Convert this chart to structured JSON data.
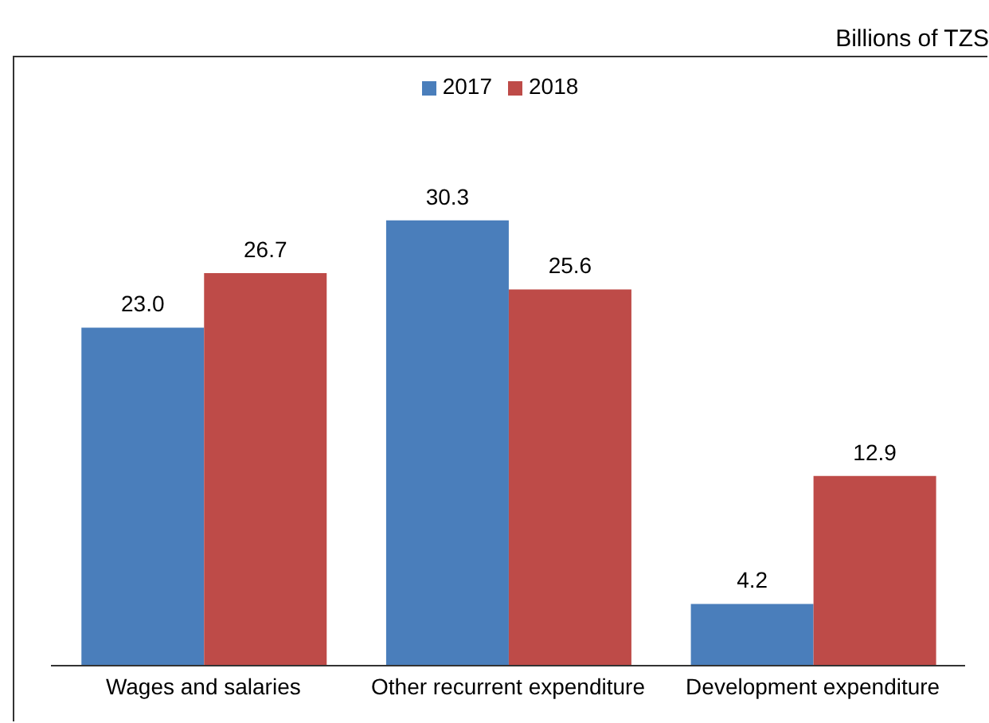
{
  "chart_data": {
    "type": "bar",
    "annotations": [
      "Billions of TZS"
    ],
    "categories": [
      "Wages and salaries",
      "Other recurrent expenditure",
      "Development expenditure"
    ],
    "series": [
      {
        "name": "2017",
        "color": "#4a7ebb",
        "values": [
          23.0,
          30.3,
          4.2
        ],
        "value_labels": [
          "23.0",
          "30.3",
          "4.2"
        ]
      },
      {
        "name": "2018",
        "color": "#be4b48",
        "values": [
          26.7,
          25.6,
          12.9
        ],
        "value_labels": [
          "26.7",
          "25.6",
          "12.9"
        ]
      }
    ],
    "legend": "top",
    "tick_labels": "x"
  }
}
